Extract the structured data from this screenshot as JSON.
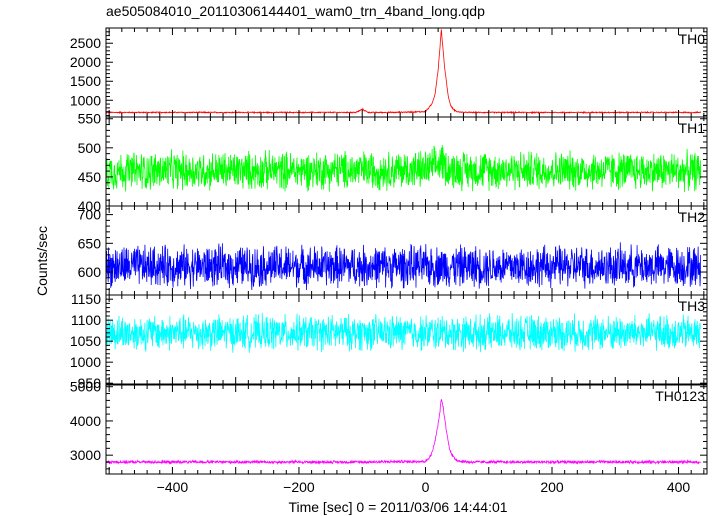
{
  "title": "ae505084010_20110306144401_wam0_trn_4band_long.qdp",
  "ylabel": "Counts/sec",
  "xlabel": "Time [sec] 0 = 2011/03/06 14:44:01",
  "chart_data": [
    {
      "type": "line",
      "name": "TH0",
      "color": "#ff0000",
      "xlim": [
        -505,
        445
      ],
      "ylim": [
        560,
        2900
      ],
      "yticks": [
        1000,
        1500,
        2000,
        2500
      ],
      "xticks": [
        -400,
        -200,
        0,
        200,
        400
      ],
      "x": [
        -505,
        -300,
        -150,
        -110,
        -100,
        -90,
        -50,
        0,
        5,
        10,
        15,
        20,
        22,
        25,
        28,
        30,
        33,
        36,
        40,
        45,
        50,
        60,
        100,
        200,
        300,
        435
      ],
      "y": [
        680,
        680,
        680,
        680,
        760,
        680,
        680,
        700,
        800,
        900,
        1150,
        1800,
        2200,
        2850,
        2300,
        1900,
        1500,
        1100,
        850,
        750,
        700,
        680,
        680,
        680,
        680,
        680
      ],
      "noise": 25
    },
    {
      "type": "line",
      "name": "TH1",
      "color": "#00ff00",
      "xlim": [
        -505,
        445
      ],
      "ylim": [
        400,
        553
      ],
      "yticks": [
        400,
        450,
        500,
        550
      ],
      "xticks": [
        -400,
        -200,
        0,
        200,
        400
      ],
      "x": [
        -505,
        0,
        20,
        25,
        30,
        40,
        435
      ],
      "y": [
        460,
        462,
        470,
        480,
        470,
        462,
        460
      ],
      "noise": 55
    },
    {
      "type": "line",
      "name": "TH2",
      "color": "#0000ff",
      "xlim": [
        -505,
        445
      ],
      "ylim": [
        560,
        715
      ],
      "yticks": [
        600,
        650,
        700
      ],
      "xticks": [
        -400,
        -200,
        0,
        200,
        400
      ],
      "x": [
        -505,
        435
      ],
      "y": [
        610,
        610
      ],
      "noise": 60
    },
    {
      "type": "line",
      "name": "TH3",
      "color": "#00ffff",
      "xlim": [
        -505,
        445
      ],
      "ylim": [
        948,
        1160
      ],
      "yticks": [
        950,
        1000,
        1050,
        1100,
        1150
      ],
      "xticks": [
        -400,
        -200,
        0,
        200,
        400
      ],
      "x": [
        -505,
        435
      ],
      "y": [
        1070,
        1070
      ],
      "noise": 70
    },
    {
      "type": "line",
      "name": "TH0123",
      "color": "#ff00ff",
      "xlim": [
        -505,
        445
      ],
      "ylim": [
        2450,
        5050
      ],
      "yticks": [
        3000,
        4000,
        5000
      ],
      "xticks": [
        -400,
        -200,
        0,
        200,
        400
      ],
      "x": [
        -505,
        -300,
        -100,
        0,
        5,
        10,
        15,
        20,
        23,
        25,
        28,
        31,
        34,
        38,
        42,
        48,
        55,
        70,
        200,
        435
      ],
      "y": [
        2800,
        2800,
        2800,
        2820,
        2900,
        3050,
        3400,
        3900,
        4300,
        4650,
        4400,
        4000,
        3600,
        3200,
        3000,
        2870,
        2820,
        2800,
        2800,
        2800
      ],
      "noise": 70
    }
  ]
}
